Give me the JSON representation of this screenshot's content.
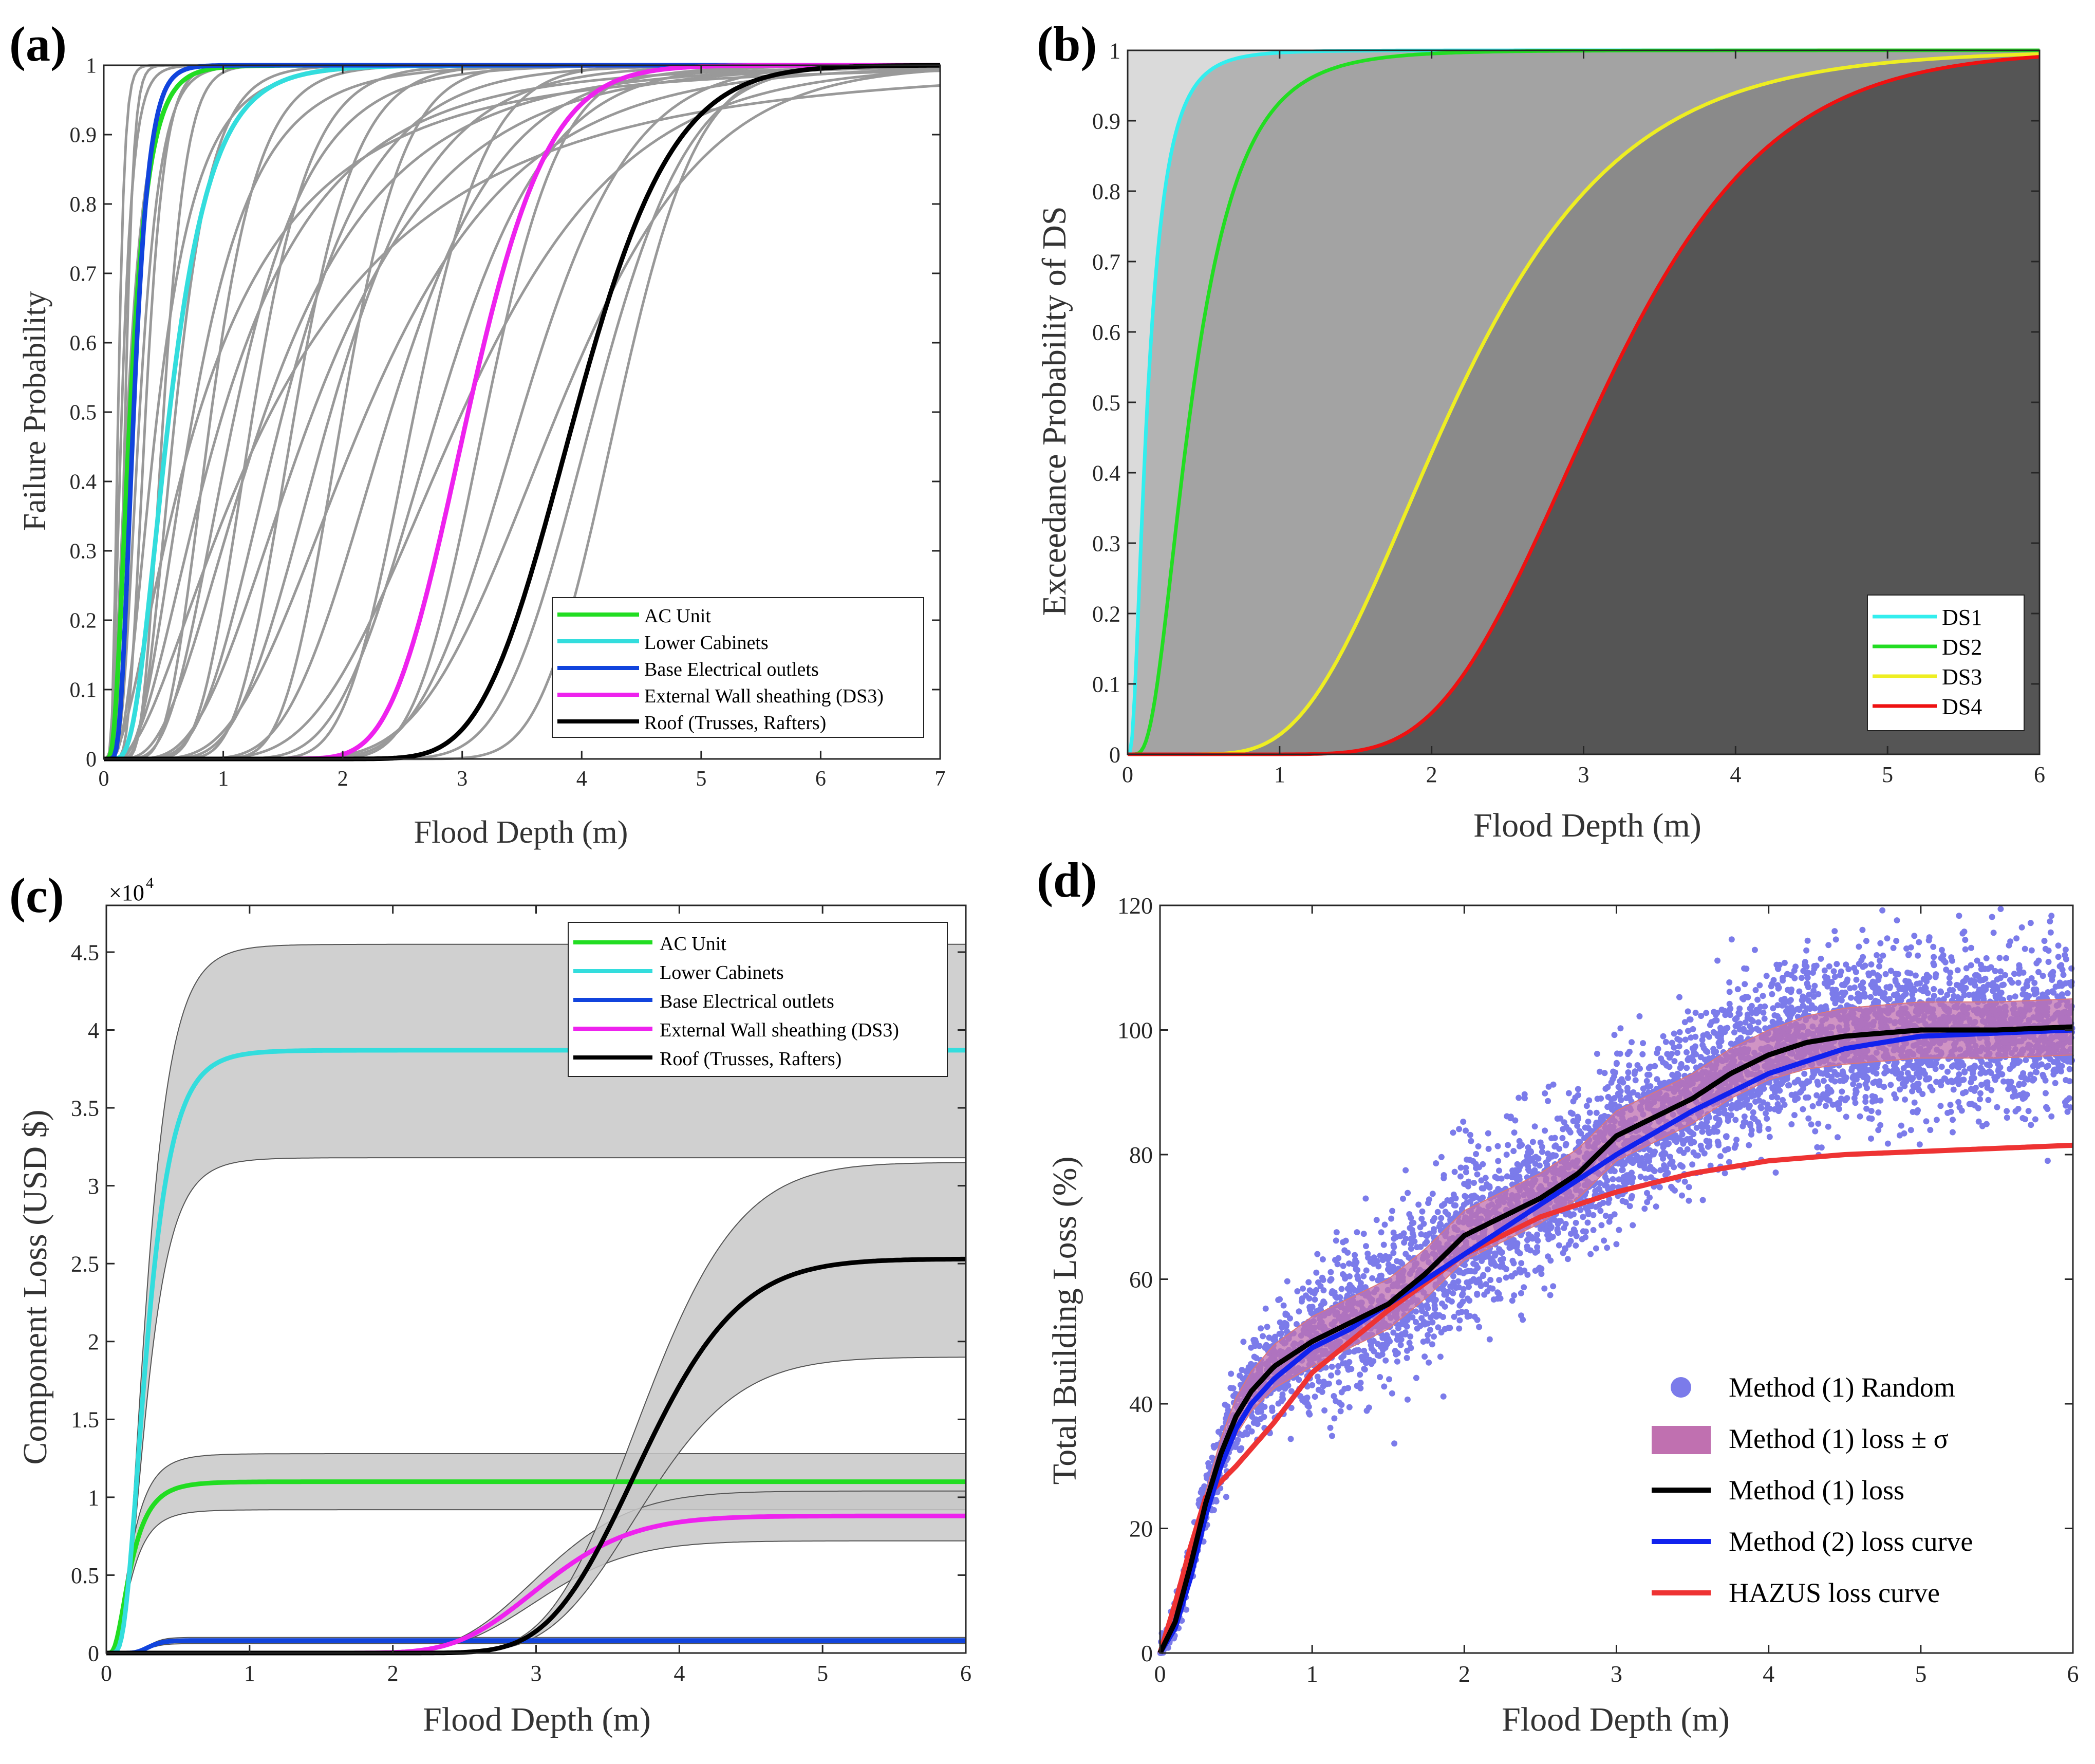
{
  "figure": {
    "panels": [
      {
        "id": "a",
        "panel_label": "(a)",
        "chart_data": {
          "type": "line",
          "title": "",
          "xlabel": "Flood Depth (m)",
          "ylabel": "Failure Probability",
          "xlim": [
            0,
            7
          ],
          "ylim": [
            0,
            1
          ],
          "xticks": [
            "0",
            "1",
            "2",
            "3",
            "4",
            "5",
            "6",
            "7"
          ],
          "yticks": [
            "0",
            "0.1",
            "0.2",
            "0.3",
            "0.4",
            "0.5",
            "0.6",
            "0.7",
            "0.8",
            "0.9",
            "1"
          ],
          "grid": false,
          "legend_position": "bottom-right",
          "series": [
            {
              "name": "AC Unit",
              "color": "#22dd22",
              "kind": "lognormal",
              "median": 0.22,
              "beta": 0.55
            },
            {
              "name": "Lower Cabinets",
              "color": "#33dddd",
              "kind": "lognormal",
              "median": 0.55,
              "beta": 0.5
            },
            {
              "name": "Base Electrical outlets",
              "color": "#1144dd",
              "kind": "lognormal",
              "median": 0.25,
              "beta": 0.4
            },
            {
              "name": "External Wall sheathing (DS3)",
              "color": "#ee22ee",
              "kind": "lognormal",
              "median": 3.05,
              "beta": 0.17
            },
            {
              "name": "Roof (Trusses, Rafters)",
              "color": "#000000",
              "kind": "lognormal",
              "median": 3.95,
              "beta": 0.16
            }
          ],
          "background_curves": {
            "color": "#999999",
            "note": "Unlabeled gray fragility curves of other components",
            "curves": [
              {
                "median": 0.12,
                "beta": 0.35
              },
              {
                "median": 0.15,
                "beta": 0.5
              },
              {
                "median": 0.18,
                "beta": 0.3
              },
              {
                "median": 0.2,
                "beta": 0.6
              },
              {
                "median": 0.3,
                "beta": 0.45
              },
              {
                "median": 0.35,
                "beta": 0.35
              },
              {
                "median": 0.45,
                "beta": 0.6
              },
              {
                "median": 0.5,
                "beta": 0.3
              },
              {
                "median": 0.6,
                "beta": 0.4
              },
              {
                "median": 0.75,
                "beta": 0.55
              },
              {
                "median": 0.9,
                "beta": 0.35
              },
              {
                "median": 1.0,
                "beta": 0.7
              },
              {
                "median": 1.1,
                "beta": 0.45
              },
              {
                "median": 1.25,
                "beta": 0.3
              },
              {
                "median": 1.35,
                "beta": 0.6
              },
              {
                "median": 1.5,
                "beta": 0.4
              },
              {
                "median": 1.6,
                "beta": 0.25
              },
              {
                "median": 1.75,
                "beta": 0.5
              },
              {
                "median": 1.9,
                "beta": 0.35
              },
              {
                "median": 2.0,
                "beta": 0.2
              },
              {
                "median": 2.2,
                "beta": 0.45
              },
              {
                "median": 2.4,
                "beta": 0.3
              },
              {
                "median": 2.6,
                "beta": 0.18
              },
              {
                "median": 2.8,
                "beta": 0.25
              },
              {
                "median": 3.0,
                "beta": 0.35
              },
              {
                "median": 3.2,
                "beta": 0.15
              },
              {
                "median": 3.5,
                "beta": 0.2
              },
              {
                "median": 3.8,
                "beta": 0.25
              },
              {
                "median": 4.1,
                "beta": 0.15
              },
              {
                "median": 4.3,
                "beta": 0.12
              },
              {
                "median": 0.8,
                "beta": 0.9
              },
              {
                "median": 1.4,
                "beta": 0.85
              }
            ]
          }
        }
      },
      {
        "id": "b",
        "panel_label": "(b)",
        "chart_data": {
          "type": "area",
          "title": "",
          "xlabel": "Flood Depth (m)",
          "ylabel": "Exceedance Probability of DS",
          "xlim": [
            0,
            6
          ],
          "ylim": [
            0,
            1
          ],
          "xticks": [
            "0",
            "1",
            "2",
            "3",
            "4",
            "5",
            "6"
          ],
          "yticks": [
            "0",
            "0.1",
            "0.2",
            "0.3",
            "0.4",
            "0.5",
            "0.6",
            "0.7",
            "0.8",
            "0.9",
            "1"
          ],
          "grid": false,
          "legend_position": "bottom-right",
          "region_fills": [
            "#dadada",
            "#b3b3b3",
            "#a3a3a3",
            "#8a8a8a",
            "#555555"
          ],
          "series": [
            {
              "name": "DS1",
              "color": "#33eeee",
              "kind": "lognormal",
              "median": 0.13,
              "beta": 0.75
            },
            {
              "name": "DS2",
              "color": "#22dd22",
              "kind": "lognormal",
              "median": 0.42,
              "beta": 0.6
            },
            {
              "name": "DS3",
              "color": "#eeee22",
              "kind": "lognormal",
              "median": 2.15,
              "beta": 0.4
            },
            {
              "name": "DS4",
              "color": "#ee1111",
              "kind": "lognormal",
              "median": 3.1,
              "beta": 0.28
            }
          ]
        }
      },
      {
        "id": "c",
        "panel_label": "(c)",
        "chart_data": {
          "type": "line",
          "title": "",
          "xlabel": "Flood Depth (m)",
          "ylabel": "Component Loss (USD $)",
          "y_multiplier_label": "×10",
          "y_multiplier_exponent": "4",
          "xlim": [
            0,
            6
          ],
          "ylim": [
            0,
            4.8
          ],
          "xticks": [
            "0",
            "1",
            "2",
            "3",
            "4",
            "5",
            "6"
          ],
          "yticks": [
            "0",
            "0.5",
            "1",
            "1.5",
            "2",
            "2.5",
            "3",
            "3.5",
            "4",
            "4.5"
          ],
          "grid": false,
          "legend_position": "top-right",
          "band_color": "#c8c8c8",
          "series": [
            {
              "name": "AC Unit",
              "color": "#22dd22",
              "kind": "lognormal",
              "max": 1.1,
              "median": 0.17,
              "beta": 0.6,
              "band": [
                0.92,
                1.28
              ]
            },
            {
              "name": "Lower Cabinets",
              "color": "#33dddd",
              "kind": "lognormal",
              "max": 3.87,
              "median": 0.28,
              "beta": 0.5,
              "band": [
                3.18,
                4.55
              ]
            },
            {
              "name": "Base Electrical outlets",
              "color": "#1144dd",
              "kind": "lognormal",
              "max": 0.08,
              "median": 0.3,
              "beta": 0.25,
              "band": [
                0.06,
                0.1
              ]
            },
            {
              "name": "External Wall sheathing (DS3)",
              "color": "#ee22ee",
              "kind": "lognormal",
              "max": 0.88,
              "median": 3.05,
              "beta": 0.16,
              "band": [
                0.72,
                1.04
              ]
            },
            {
              "name": "Roof (Trusses, Rafters)",
              "color": "#000000",
              "kind": "lognormal",
              "max": 2.53,
              "median": 3.75,
              "beta": 0.14,
              "band": [
                1.9,
                3.15
              ]
            }
          ]
        }
      },
      {
        "id": "d",
        "panel_label": "(d)",
        "chart_data": {
          "type": "scatter",
          "title": "",
          "xlabel": "Flood Depth (m)",
          "ylabel": "Total Building Loss (%)",
          "xlim": [
            0,
            6
          ],
          "ylim": [
            0,
            120
          ],
          "xticks": [
            "0",
            "1",
            "2",
            "3",
            "4",
            "5",
            "6"
          ],
          "yticks": [
            "0",
            "20",
            "40",
            "60",
            "80",
            "100",
            "120"
          ],
          "grid": false,
          "legend_position": "bottom-right",
          "series": [
            {
              "name": "Method (1) Random",
              "color": "#7b7bea",
              "kind": "scatter-cloud"
            },
            {
              "name": "Method (1) loss ± σ",
              "color": "#c070b0",
              "kind": "band",
              "sigma": [
                0,
                3,
                4,
                4,
                4,
                4,
                4,
                4,
                4,
                4.5,
                4.5,
                4.5,
                4.5
              ]
            },
            {
              "name": "Method (1) loss",
              "color": "#000000",
              "kind": "line",
              "x": [
                0,
                0.1,
                0.2,
                0.3,
                0.4,
                0.5,
                0.6,
                0.75,
                1.0,
                1.25,
                1.5,
                1.75,
                2.0,
                2.25,
                2.5,
                2.75,
                3.0,
                3.25,
                3.5,
                3.75,
                4.0,
                4.25,
                4.5,
                5.0,
                5.5,
                6.0
              ],
              "y": [
                0,
                5,
                14,
                24,
                32,
                38,
                42,
                46,
                50,
                53,
                56,
                61,
                67,
                70,
                73,
                77,
                83,
                86,
                89,
                93,
                96,
                98,
                99,
                100,
                100,
                100.5
              ]
            },
            {
              "name": "Method (2) loss curve",
              "color": "#1122ee",
              "kind": "line",
              "x": [
                0,
                0.1,
                0.2,
                0.3,
                0.4,
                0.5,
                0.6,
                0.75,
                1.0,
                1.25,
                1.5,
                1.75,
                2.0,
                2.5,
                3.0,
                3.5,
                4.0,
                4.5,
                5.0,
                5.5,
                6.0
              ],
              "y": [
                0,
                4,
                12,
                22,
                30,
                36,
                40,
                44,
                49,
                52,
                56,
                60,
                64,
                72,
                80,
                87,
                93,
                97,
                99,
                99.5,
                100
              ]
            },
            {
              "name": "HAZUS loss curve",
              "color": "#ee3333",
              "kind": "line",
              "x": [
                0,
                0.1,
                0.2,
                0.3,
                0.5,
                0.75,
                1.0,
                1.25,
                1.5,
                2.0,
                2.5,
                3.0,
                3.5,
                4.0,
                4.5,
                5.0,
                5.5,
                6.0
              ],
              "y": [
                0,
                8,
                17,
                25,
                30,
                37,
                45,
                50,
                55,
                64,
                70,
                74,
                77,
                79,
                80,
                80.5,
                81,
                81.5
              ]
            }
          ]
        }
      }
    ]
  }
}
